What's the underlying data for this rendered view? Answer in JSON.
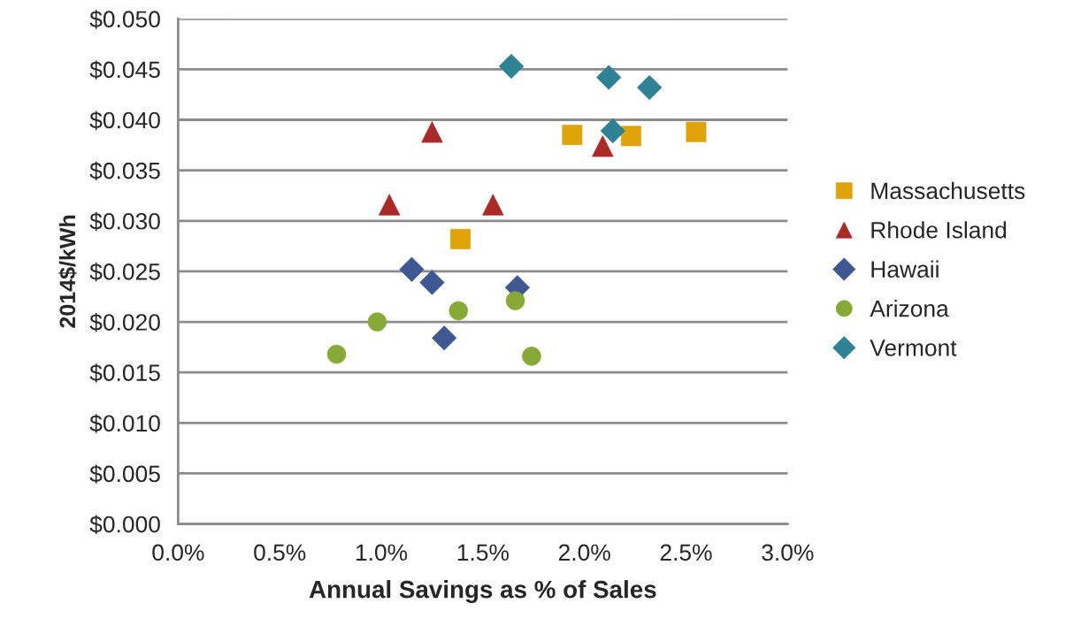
{
  "chart_data": {
    "type": "scatter",
    "xlabel": "Annual Savings as % of Sales",
    "ylabel": "2014$/kWh",
    "xlim": [
      0,
      3
    ],
    "ylim": [
      0,
      0.05
    ],
    "xticks": [
      {
        "value": 0,
        "label": "0.0%"
      },
      {
        "value": 0.5,
        "label": "0.5%"
      },
      {
        "value": 1,
        "label": "1.0%"
      },
      {
        "value": 1.5,
        "label": "1.5%"
      },
      {
        "value": 2,
        "label": "2.0%"
      },
      {
        "value": 2.5,
        "label": "2.5%"
      },
      {
        "value": 3,
        "label": "3.0%"
      }
    ],
    "yticks": [
      {
        "value": 0,
        "label": "$0.000"
      },
      {
        "value": 0.005,
        "label": "$0.005"
      },
      {
        "value": 0.01,
        "label": "$0.010"
      },
      {
        "value": 0.015,
        "label": "$0.015"
      },
      {
        "value": 0.02,
        "label": "$0.020"
      },
      {
        "value": 0.025,
        "label": "$0.025"
      },
      {
        "value": 0.03,
        "label": "$0.030"
      },
      {
        "value": 0.035,
        "label": "$0.035"
      },
      {
        "value": 0.04,
        "label": "$0.040"
      },
      {
        "value": 0.045,
        "label": "$0.045"
      },
      {
        "value": 0.05,
        "label": "$0.050"
      }
    ],
    "grid": "y",
    "legend": "right",
    "series": [
      {
        "name": "Massachusetts",
        "color": "#e0a30a",
        "marker": "square",
        "x": [
          1.94,
          2.23,
          2.55,
          1.39
        ],
        "values": [
          0.0385,
          0.0384,
          0.0388,
          0.0282
        ]
      },
      {
        "name": "Rhode Island",
        "color": "#ab2a28",
        "marker": "triangle",
        "x": [
          1.25,
          1.04,
          1.55,
          2.09
        ],
        "values": [
          0.0388,
          0.0316,
          0.0316,
          0.0374
        ]
      },
      {
        "name": "Hawaii",
        "color": "#3f5891",
        "marker": "diamond",
        "x": [
          1.15,
          1.25,
          1.67,
          1.31
        ],
        "values": [
          0.0252,
          0.0239,
          0.0234,
          0.0184
        ]
      },
      {
        "name": "Arizona",
        "color": "#87a935",
        "marker": "circle",
        "x": [
          0.78,
          0.98,
          1.38,
          1.66,
          1.74
        ],
        "values": [
          0.0168,
          0.02,
          0.0211,
          0.0221,
          0.0166
        ]
      },
      {
        "name": "Vermont",
        "color": "#2e8293",
        "marker": "diamond",
        "x": [
          1.64,
          2.12,
          2.32,
          2.14
        ],
        "values": [
          0.0453,
          0.0442,
          0.0432,
          0.0389
        ]
      }
    ]
  }
}
